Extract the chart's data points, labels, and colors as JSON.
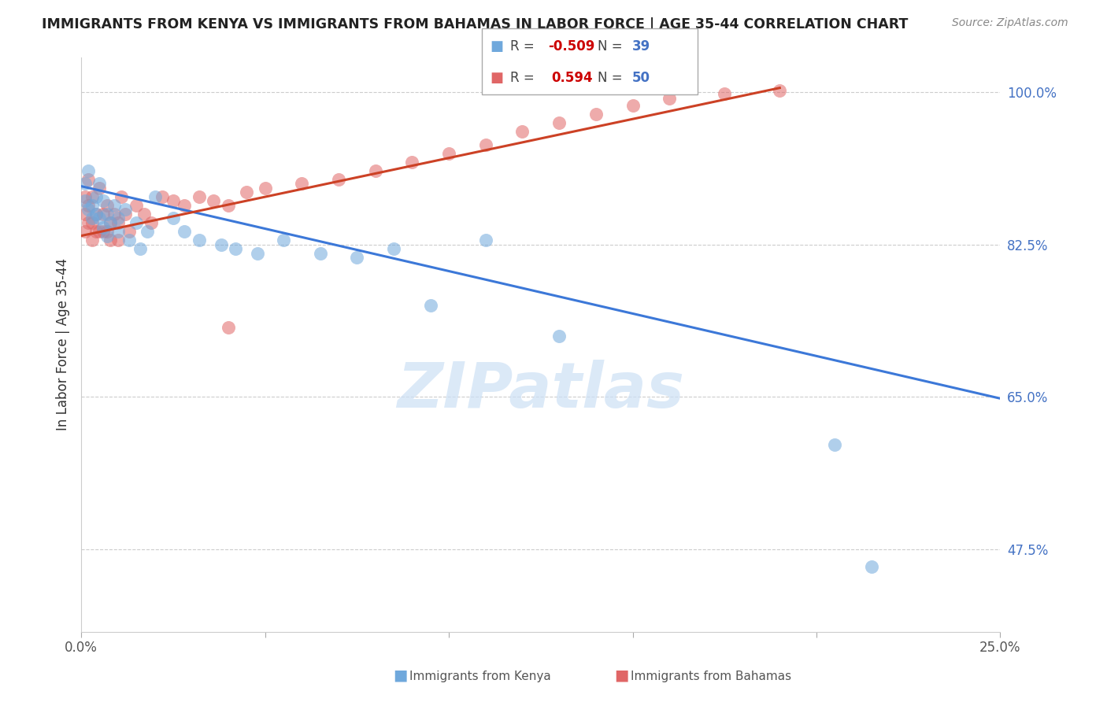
{
  "title": "IMMIGRANTS FROM KENYA VS IMMIGRANTS FROM BAHAMAS IN LABOR FORCE | AGE 35-44 CORRELATION CHART",
  "source": "Source: ZipAtlas.com",
  "ylabel": "In Labor Force | Age 35-44",
  "xlim": [
    0.0,
    0.25
  ],
  "ylim": [
    0.38,
    1.04
  ],
  "ytick_positions": [
    0.475,
    0.65,
    0.825,
    1.0
  ],
  "ytick_labels": [
    "47.5%",
    "65.0%",
    "82.5%",
    "100.0%"
  ],
  "kenya_color": "#6fa8dc",
  "bahamas_color": "#e06666",
  "kenya_line_color": "#3c78d8",
  "bahamas_line_color": "#cc4125",
  "legend_label_kenya": "Immigrants from Kenya",
  "legend_label_bahamas": "Immigrants from Bahamas",
  "watermark": "ZIPatlas",
  "kenya_x": [
    0.001,
    0.001,
    0.002,
    0.002,
    0.003,
    0.003,
    0.004,
    0.004,
    0.005,
    0.005,
    0.006,
    0.006,
    0.007,
    0.007,
    0.008,
    0.009,
    0.01,
    0.01,
    0.012,
    0.013,
    0.015,
    0.016,
    0.018,
    0.02,
    0.025,
    0.028,
    0.032,
    0.038,
    0.042,
    0.048,
    0.055,
    0.065,
    0.075,
    0.085,
    0.095,
    0.11,
    0.13,
    0.205,
    0.215
  ],
  "kenya_y": [
    0.895,
    0.875,
    0.91,
    0.865,
    0.87,
    0.855,
    0.88,
    0.86,
    0.895,
    0.855,
    0.875,
    0.845,
    0.86,
    0.835,
    0.85,
    0.87,
    0.855,
    0.84,
    0.865,
    0.83,
    0.85,
    0.82,
    0.84,
    0.88,
    0.855,
    0.84,
    0.83,
    0.825,
    0.82,
    0.815,
    0.83,
    0.815,
    0.81,
    0.82,
    0.755,
    0.83,
    0.72,
    0.595,
    0.455
  ],
  "bahamas_x": [
    0.001,
    0.001,
    0.001,
    0.002,
    0.002,
    0.002,
    0.003,
    0.003,
    0.003,
    0.004,
    0.004,
    0.005,
    0.005,
    0.006,
    0.006,
    0.007,
    0.007,
    0.008,
    0.008,
    0.009,
    0.01,
    0.01,
    0.011,
    0.012,
    0.013,
    0.015,
    0.017,
    0.019,
    0.022,
    0.025,
    0.028,
    0.032,
    0.036,
    0.04,
    0.045,
    0.05,
    0.06,
    0.07,
    0.08,
    0.09,
    0.1,
    0.11,
    0.12,
    0.13,
    0.14,
    0.15,
    0.16,
    0.175,
    0.19,
    0.04
  ],
  "bahamas_y": [
    0.88,
    0.86,
    0.84,
    0.9,
    0.87,
    0.85,
    0.88,
    0.85,
    0.83,
    0.86,
    0.84,
    0.89,
    0.84,
    0.86,
    0.84,
    0.87,
    0.84,
    0.85,
    0.83,
    0.86,
    0.85,
    0.83,
    0.88,
    0.86,
    0.84,
    0.87,
    0.86,
    0.85,
    0.88,
    0.875,
    0.87,
    0.88,
    0.875,
    0.87,
    0.885,
    0.89,
    0.895,
    0.9,
    0.91,
    0.92,
    0.93,
    0.94,
    0.955,
    0.965,
    0.975,
    0.985,
    0.993,
    0.998,
    1.002,
    0.73
  ],
  "kenya_line_x0": 0.0,
  "kenya_line_y0": 0.892,
  "kenya_line_x1": 0.25,
  "kenya_line_y1": 0.648,
  "bahamas_line_x0": 0.0,
  "bahamas_line_y0": 0.835,
  "bahamas_line_x1": 0.19,
  "bahamas_line_y1": 1.005
}
